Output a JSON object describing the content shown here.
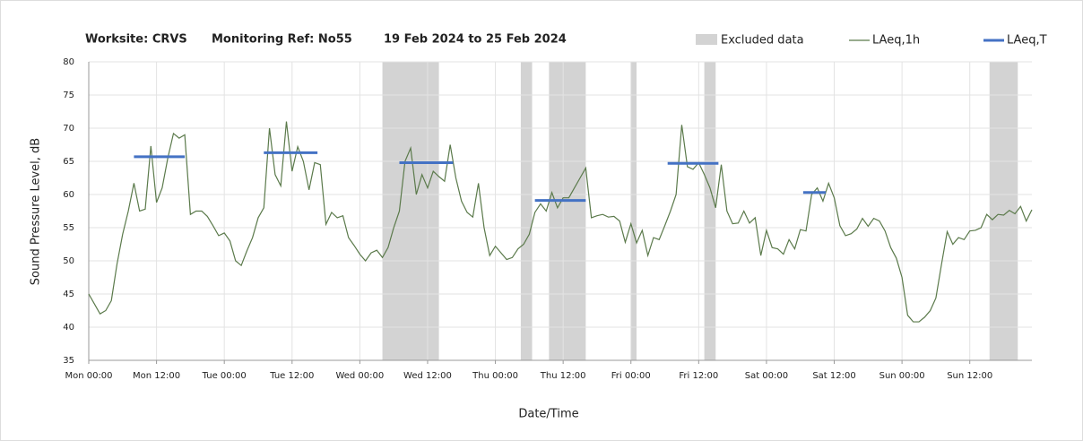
{
  "chart_data": {
    "type": "line",
    "title": [
      "Worksite: CRVS",
      "Monitoring Ref: No55",
      "19 Feb 2024 to 25 Feb 2024"
    ],
    "x_label": "Date/Time",
    "y_label": "Sound Pressure Level, dB",
    "xlim": [
      0,
      167
    ],
    "xticks": [
      {
        "value": 0,
        "label": "Mon 00:00"
      },
      {
        "value": 12,
        "label": "Mon 12:00"
      },
      {
        "value": 24,
        "label": "Tue 00:00"
      },
      {
        "value": 36,
        "label": "Tue 12:00"
      },
      {
        "value": 48,
        "label": "Wed 00:00"
      },
      {
        "value": 60,
        "label": "Wed 12:00"
      },
      {
        "value": 72,
        "label": "Thu 00:00"
      },
      {
        "value": 84,
        "label": "Thu 12:00"
      },
      {
        "value": 96,
        "label": "Fri 00:00"
      },
      {
        "value": 108,
        "label": "Fri 12:00"
      },
      {
        "value": 120,
        "label": "Sat 00:00"
      },
      {
        "value": 132,
        "label": "Sat 12:00"
      },
      {
        "value": 144,
        "label": "Sun 00:00"
      },
      {
        "value": 156,
        "label": "Sun 12:00"
      }
    ],
    "ylim": [
      35,
      80
    ],
    "yticks": [
      35,
      40,
      45,
      50,
      55,
      60,
      65,
      70,
      75,
      80
    ],
    "grid": true,
    "excluded": {
      "name": "Excluded data",
      "color": "#d3d3d3",
      "ranges": [
        [
          52,
          62
        ],
        [
          76.5,
          78.5
        ],
        [
          81.5,
          88
        ],
        [
          96,
          97
        ],
        [
          109,
          111
        ],
        [
          159.5,
          164.5
        ]
      ]
    },
    "series": [
      {
        "name": "LAeq,1h",
        "color": "#5b7a4b",
        "x": [
          0,
          1,
          2,
          3,
          4,
          5,
          6,
          7,
          8,
          9,
          10,
          11,
          12,
          13,
          14,
          15,
          16,
          17,
          18,
          19,
          20,
          21,
          22,
          23,
          24,
          25,
          26,
          27,
          28,
          29,
          30,
          31,
          32,
          33,
          34,
          35,
          36,
          37,
          38,
          39,
          40,
          41,
          42,
          43,
          44,
          45,
          46,
          47,
          48,
          49,
          50,
          51,
          52,
          53,
          54,
          55,
          56,
          57,
          58,
          59,
          60,
          61,
          62,
          63,
          64,
          65,
          66,
          67,
          68,
          69,
          70,
          71,
          72,
          73,
          74,
          75,
          76,
          77,
          78,
          79,
          80,
          81,
          82,
          83,
          84,
          85,
          86,
          87,
          88,
          89,
          90,
          91,
          92,
          93,
          94,
          95,
          96,
          97,
          98,
          99,
          100,
          101,
          102,
          103,
          104,
          105,
          106,
          107,
          108,
          109,
          110,
          111,
          112,
          113,
          114,
          115,
          116,
          117,
          118,
          119,
          120,
          121,
          122,
          123,
          124,
          125,
          126,
          127,
          128,
          129,
          130,
          131,
          132,
          133,
          134,
          135,
          136,
          137,
          138,
          139,
          140,
          141,
          142,
          143,
          144,
          145,
          146,
          147,
          148,
          149,
          150,
          151,
          152,
          153,
          154,
          155,
          156,
          157,
          158,
          159,
          160,
          161,
          162,
          163,
          164,
          165,
          166,
          167
        ],
        "values": [
          45,
          43.5,
          42,
          42.5,
          44,
          49.5,
          54,
          57.5,
          61.7,
          57.5,
          57.8,
          67.3,
          58.8,
          61,
          65.5,
          69.2,
          68.5,
          69,
          57,
          57.5,
          57.5,
          56.7,
          55.3,
          53.8,
          54.2,
          53,
          50,
          49.3,
          51.5,
          53.5,
          56.5,
          58,
          70,
          63,
          61.3,
          71,
          63.5,
          67.2,
          65,
          60.7,
          64.8,
          64.5,
          55.5,
          57.3,
          56.5,
          56.8,
          53.5,
          52.3,
          51,
          50,
          51.2,
          51.6,
          50.5,
          52,
          55,
          57.5,
          65,
          67,
          60,
          63,
          61,
          63.5,
          62.7,
          62,
          67.5,
          62.5,
          59,
          57.3,
          56.6,
          61.7,
          55,
          50.8,
          52.2,
          51.2,
          50.2,
          50.5,
          51.8,
          52.5,
          54,
          57.3,
          58.6,
          57.5,
          60.3,
          58,
          59.5,
          59.5,
          61,
          62.5,
          64,
          56.5,
          56.8,
          57,
          56.6,
          56.7,
          56,
          52.8,
          55.6,
          52.7,
          54.6,
          50.8,
          53.5,
          53.2,
          55.3,
          57.5,
          60,
          70.5,
          64.2,
          63.8,
          64.8,
          63,
          61,
          58,
          64.5,
          57.5,
          55.6,
          55.7,
          57.5,
          55.7,
          56.5,
          50.8,
          54.6,
          52,
          51.8,
          51,
          53.2,
          51.8,
          54.7,
          54.5,
          60,
          61,
          59,
          61.7,
          59.5,
          55.3,
          53.8,
          54.1,
          54.8,
          56.4,
          55.2,
          56.4,
          56,
          54.5,
          52,
          50.4,
          47.5,
          41.8,
          40.8,
          40.8,
          41.5,
          42.5,
          44.4,
          49.5,
          54.4,
          52.5,
          53.5,
          53.2,
          54.5,
          54.6,
          55,
          57,
          56.2,
          57,
          56.9,
          57.6,
          57.1,
          58.2,
          56,
          57.7
        ]
      }
    ],
    "segments": {
      "name": "LAeq,T",
      "color": "#4472c4",
      "ranges": [
        [
          8,
          17
        ],
        [
          31,
          40.5
        ],
        [
          55,
          64.5
        ],
        [
          79,
          88
        ],
        [
          102.5,
          111.5
        ],
        [
          126.5,
          130.5
        ]
      ],
      "values": [
        65.7,
        66.3,
        64.8,
        59.1,
        64.7,
        60.3
      ]
    }
  }
}
